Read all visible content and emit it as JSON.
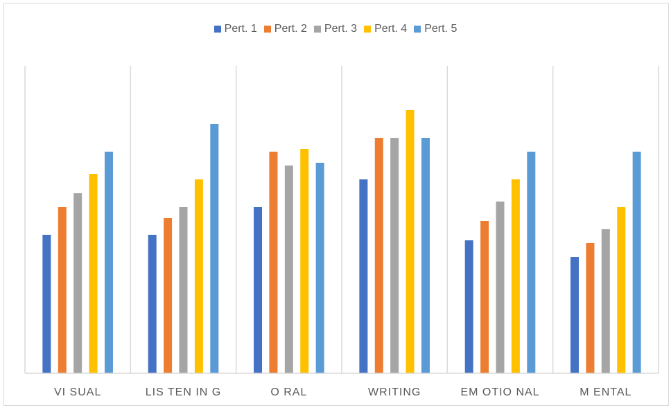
{
  "chart_data": {
    "type": "bar",
    "title": "",
    "xlabel": "",
    "ylabel": "",
    "categories": [
      "VISUAL",
      "LISTENING",
      "ORAL",
      "WRITING",
      "EMOTIONAL",
      "MENTAL"
    ],
    "category_labels": [
      "VI SUAL",
      "LIS TEN IN G",
      "O RAL",
      "WRITING",
      "EM OTIO NAL",
      "M ENTAL"
    ],
    "ylim": [
      0,
      10
    ],
    "grid": false,
    "legend_position": "top",
    "series": [
      {
        "name": "Pert. 1",
        "color": "#4472C4",
        "values": [
          5.0,
          5.0,
          6.0,
          7.0,
          4.8,
          4.2
        ]
      },
      {
        "name": "Pert. 2",
        "color": "#ED7D31",
        "values": [
          6.0,
          5.6,
          8.0,
          8.5,
          5.5,
          4.7
        ]
      },
      {
        "name": "Pert. 3",
        "color": "#A5A5A5",
        "values": [
          6.5,
          6.0,
          7.5,
          8.5,
          6.2,
          5.2
        ]
      },
      {
        "name": "Pert. 4",
        "color": "#FFC000",
        "values": [
          7.2,
          7.0,
          8.1,
          9.5,
          7.0,
          6.0
        ]
      },
      {
        "name": "Pert. 5",
        "color": "#5B9BD5",
        "values": [
          8.0,
          9.0,
          7.6,
          8.5,
          8.0,
          8.0
        ]
      }
    ]
  }
}
